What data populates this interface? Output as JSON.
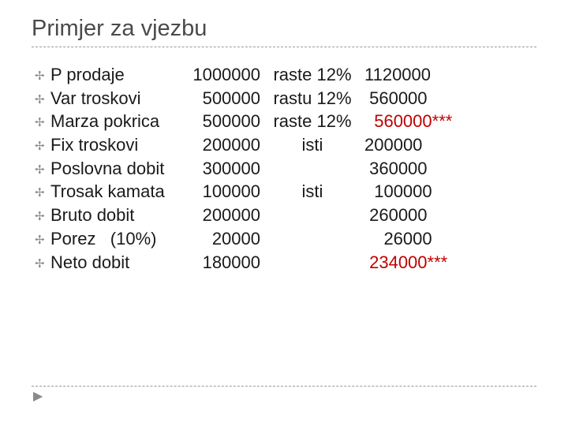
{
  "title": "Primjer za vjezbu",
  "bullet_glyph": "✢",
  "footer_marker": "▶",
  "colors": {
    "title": "#4a4a4a",
    "text": "#1a1a1a",
    "highlight": "#c00000",
    "divider": "#999999",
    "bullet": "#888888",
    "background": "#ffffff"
  },
  "rows": [
    {
      "label": "P prodaje",
      "val1": "1000000",
      "change": "raste 12%",
      "val2": "1120000",
      "highlight": false
    },
    {
      "label": "Var troskovi",
      "val1": "500000",
      "change": "rastu 12%",
      "val2": " 560000",
      "highlight": false
    },
    {
      "label": "Marza pokrica",
      "val1": "500000",
      "change": "raste 12%",
      "val2": "  560000***",
      "highlight": true
    },
    {
      "label": "Fix troskovi",
      "val1": "200000",
      "change": "isti",
      "val2": "200000",
      "highlight": false
    },
    {
      "label": "Poslovna dobit",
      "val1": "300000",
      "change": "",
      "val2": " 360000",
      "highlight": false
    },
    {
      "label": "Trosak kamata",
      "val1": "100000",
      "change": "isti",
      "val2": "  100000",
      "highlight": false
    },
    {
      "label": "Bruto dobit",
      "val1": "200000",
      "change": "",
      "val2": " 260000",
      "highlight": false
    },
    {
      "label": "Porez   (10%)",
      "val1": "20000",
      "change": "",
      "val2": "    26000",
      "highlight": false
    },
    {
      "label": "Neto dobit",
      "val1": "180000",
      "change": "",
      "val2": " 234000***",
      "highlight": true
    }
  ]
}
